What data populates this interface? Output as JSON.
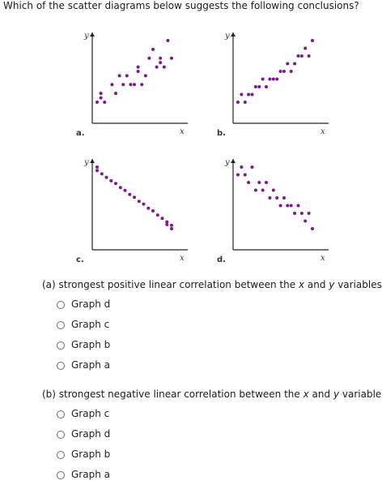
{
  "question_text": "Which of the scatter diagrams below suggests the following conclusions?",
  "plots": [
    {
      "label": "a.",
      "x_axis": "x",
      "y_axis": "y",
      "points": [
        [
          1,
          1
        ],
        [
          2,
          2
        ],
        [
          3,
          1
        ],
        [
          5,
          3
        ],
        [
          6,
          2
        ],
        [
          8,
          3
        ],
        [
          9,
          4
        ],
        [
          10,
          3
        ],
        [
          11,
          3
        ],
        [
          12,
          5
        ],
        [
          13,
          3
        ],
        [
          14,
          4
        ],
        [
          15,
          6
        ],
        [
          16,
          7
        ],
        [
          17,
          5
        ],
        [
          18,
          6
        ],
        [
          19,
          5
        ],
        [
          20,
          8
        ],
        [
          21,
          6
        ],
        [
          2,
          1.5
        ],
        [
          7,
          4
        ],
        [
          12,
          4.5
        ],
        [
          18,
          5.5
        ]
      ]
    },
    {
      "label": "b.",
      "x_axis": "x",
      "y_axis": "y",
      "points": [
        [
          1,
          2
        ],
        [
          2,
          3
        ],
        [
          3,
          2
        ],
        [
          4,
          3
        ],
        [
          5,
          3
        ],
        [
          6,
          4
        ],
        [
          7,
          4
        ],
        [
          8,
          5
        ],
        [
          9,
          4
        ],
        [
          10,
          5
        ],
        [
          11,
          5
        ],
        [
          12,
          5
        ],
        [
          13,
          6
        ],
        [
          14,
          6
        ],
        [
          15,
          7
        ],
        [
          16,
          6
        ],
        [
          17,
          7
        ],
        [
          18,
          8
        ],
        [
          19,
          8
        ],
        [
          20,
          9
        ],
        [
          21,
          8
        ],
        [
          22,
          10
        ]
      ]
    },
    {
      "label": "c.",
      "x_axis": "x",
      "y_axis": "y",
      "points": [
        [
          1,
          10
        ],
        [
          1,
          9.5
        ],
        [
          2,
          9
        ],
        [
          3,
          8.5
        ],
        [
          4,
          8
        ],
        [
          5,
          7.6
        ],
        [
          6,
          7
        ],
        [
          7,
          6.6
        ],
        [
          8,
          6
        ],
        [
          9,
          5.6
        ],
        [
          10,
          5
        ],
        [
          11,
          4.6
        ],
        [
          12,
          4
        ],
        [
          13,
          3.6
        ],
        [
          14,
          3
        ],
        [
          15,
          2.5
        ],
        [
          16,
          2
        ],
        [
          16,
          1.6
        ],
        [
          17,
          1.5
        ],
        [
          17,
          1
        ]
      ]
    },
    {
      "label": "d.",
      "x_axis": "x",
      "y_axis": "y",
      "points": [
        [
          1,
          8
        ],
        [
          2,
          9
        ],
        [
          3,
          8
        ],
        [
          4,
          7
        ],
        [
          5,
          9
        ],
        [
          6,
          6
        ],
        [
          7,
          7
        ],
        [
          8,
          6
        ],
        [
          9,
          7
        ],
        [
          10,
          5
        ],
        [
          11,
          6
        ],
        [
          12,
          5
        ],
        [
          13,
          4
        ],
        [
          14,
          5
        ],
        [
          15,
          4
        ],
        [
          16,
          4
        ],
        [
          17,
          3
        ],
        [
          18,
          4
        ],
        [
          19,
          3
        ],
        [
          20,
          2
        ],
        [
          21,
          3
        ],
        [
          22,
          1
        ]
      ]
    }
  ],
  "part_a": {
    "prompt_before_x": "(a) strongest positive linear correlation between the ",
    "x_var": "x",
    "prompt_between": " and ",
    "y_var": "y",
    "prompt_after": " variables",
    "options": [
      "Graph d",
      "Graph c",
      "Graph b",
      "Graph a"
    ]
  },
  "part_b": {
    "prompt_before_x": "(b) strongest negative linear correlation between the ",
    "x_var": "x",
    "prompt_between": " and ",
    "y_var": "y",
    "prompt_after": " variables",
    "options": [
      "Graph c",
      "Graph d",
      "Graph b",
      "Graph a"
    ]
  }
}
